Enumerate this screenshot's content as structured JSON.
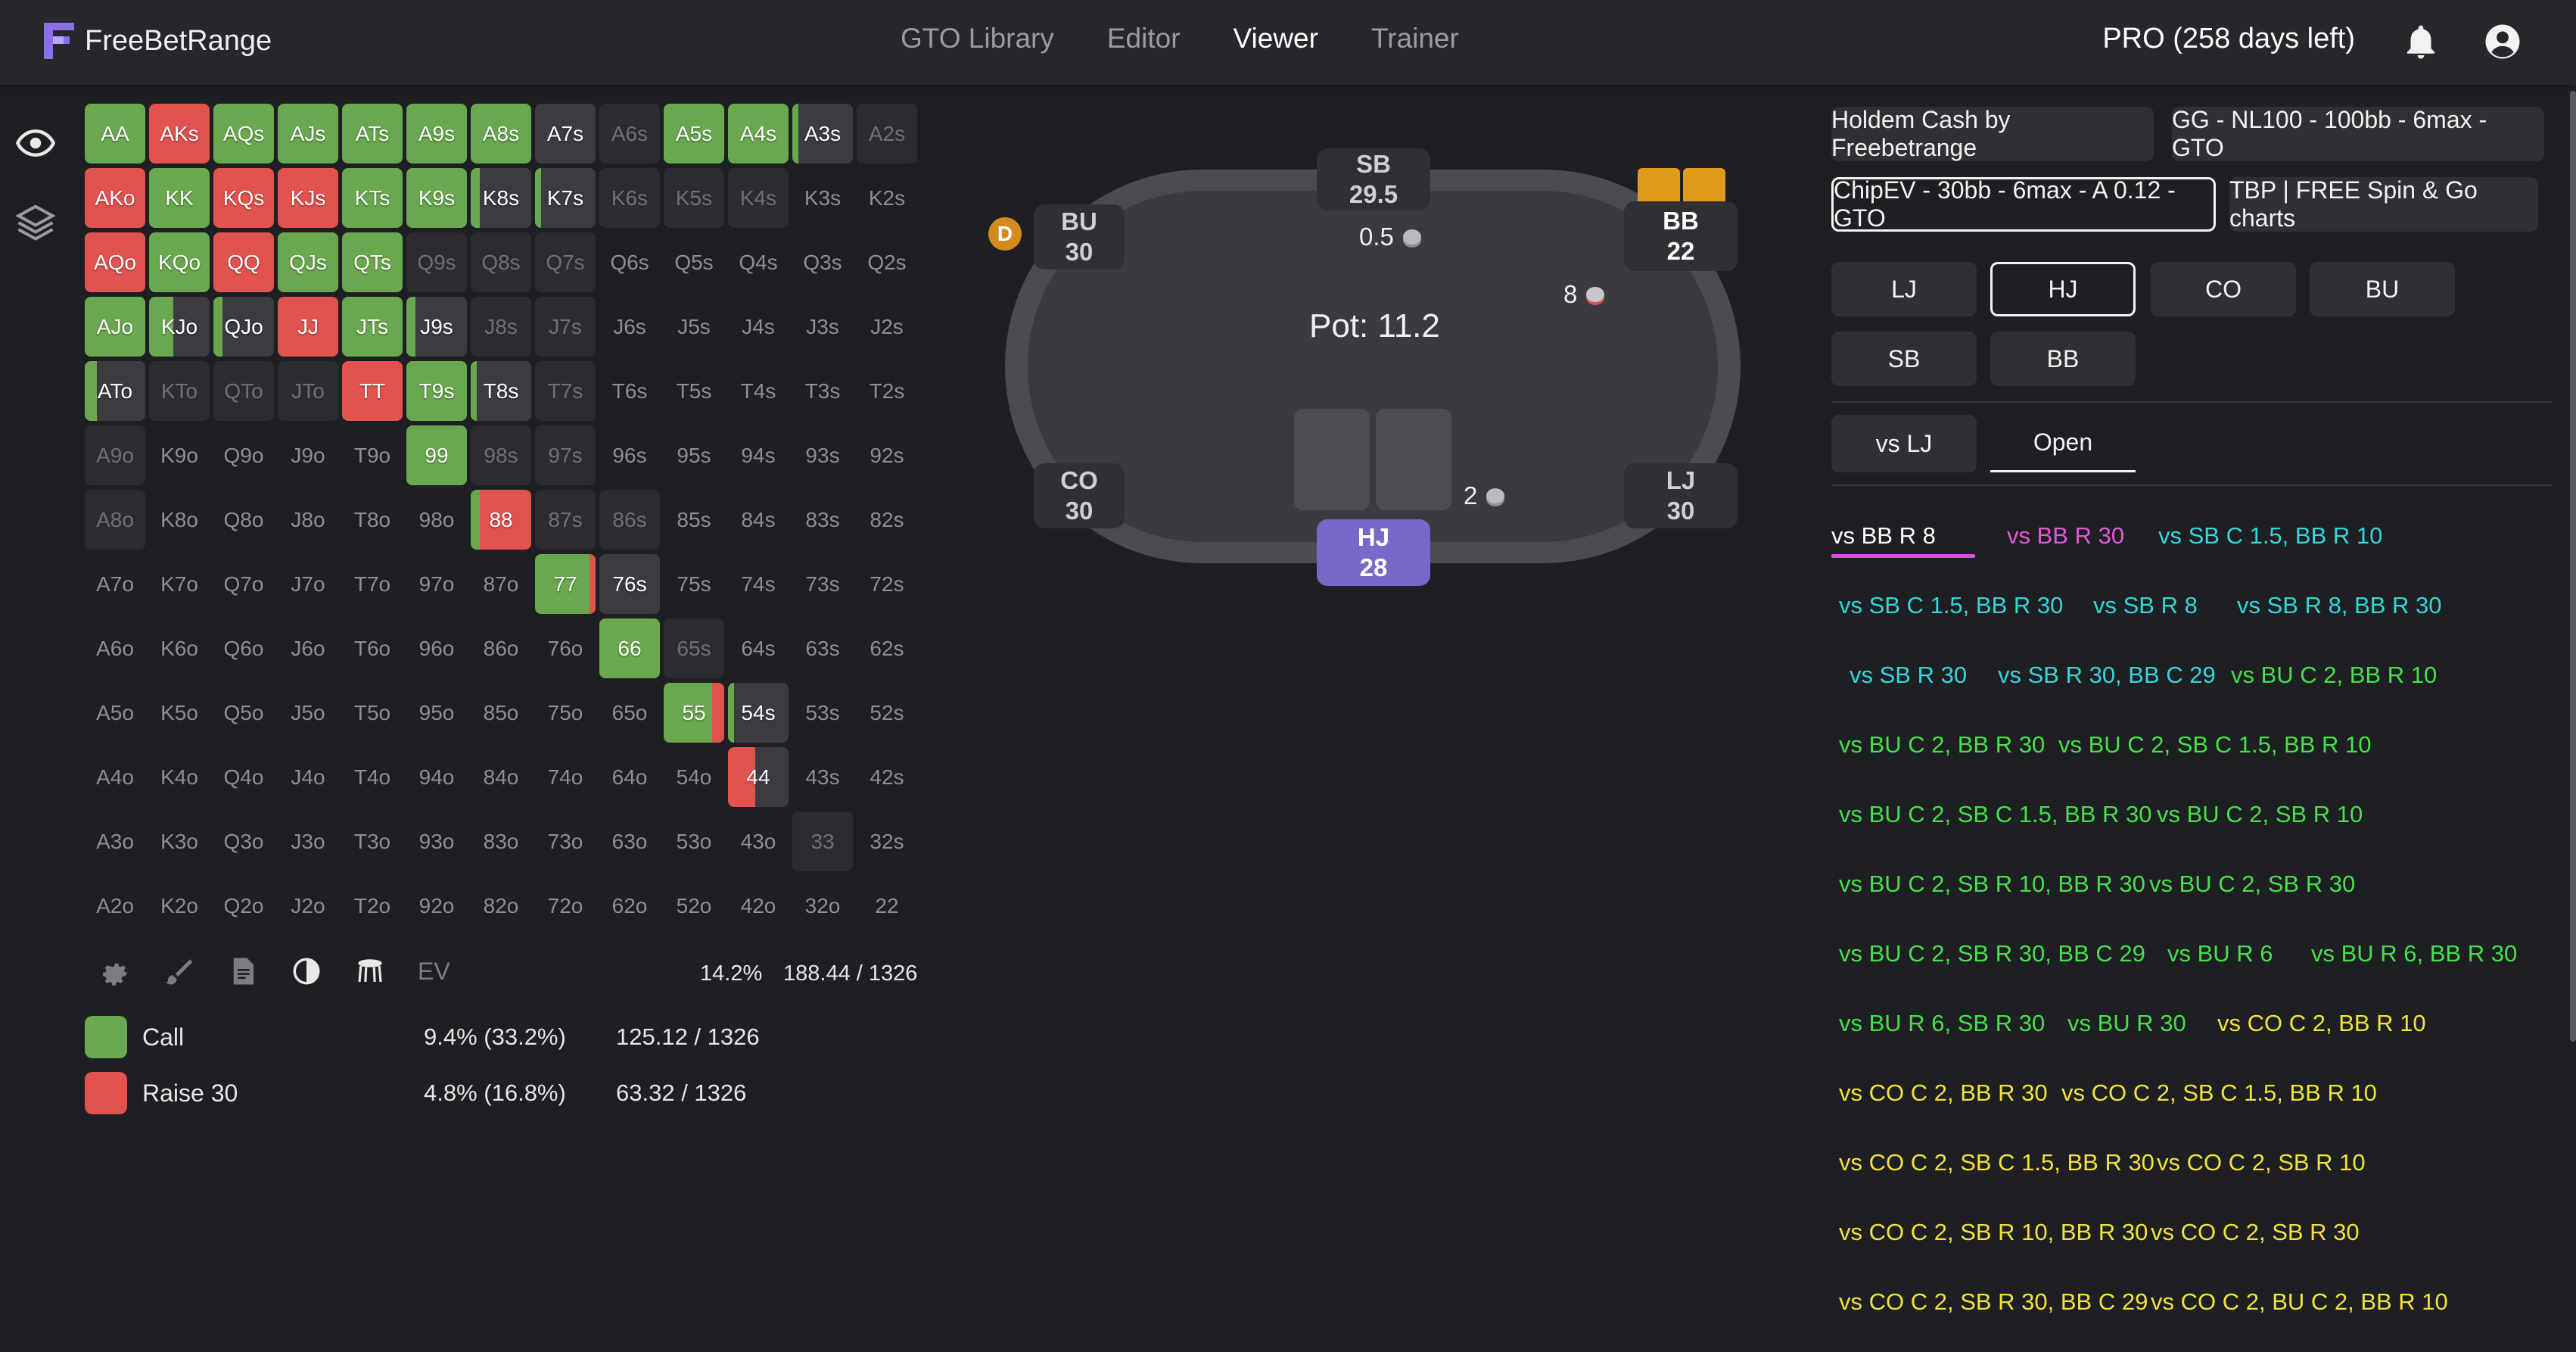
{
  "app": {
    "name": "FreeBetRange"
  },
  "nav": [
    {
      "label": "GTO Library",
      "active": false
    },
    {
      "label": "Editor",
      "active": false
    },
    {
      "label": "Viewer",
      "active": true
    },
    {
      "label": "Trainer",
      "active": false
    }
  ],
  "header": {
    "pro_status": "PRO (258 days left)"
  },
  "colors": {
    "call": "#6aa84f",
    "raise": "#e2524f",
    "accent": "#7a68c8",
    "fold": "#3a3c42"
  },
  "icons": {
    "logo": "freebetrange-logo-icon",
    "bell": "bell-icon",
    "account": "account-circle-icon",
    "eye": "eye-icon",
    "layers": "layers-icon",
    "gear": "gear-icon",
    "brush": "brush-icon",
    "doc": "document-icon",
    "contrast": "contrast-icon",
    "stool": "stool-icon"
  },
  "range_grid": {
    "rows": [
      [
        {
          "h": "AA",
          "t": "call"
        },
        {
          "h": "AKs",
          "t": "raise"
        },
        {
          "h": "AQs",
          "t": "call"
        },
        {
          "h": "AJs",
          "t": "call"
        },
        {
          "h": "ATs",
          "t": "call"
        },
        {
          "h": "A9s",
          "t": "call"
        },
        {
          "h": "A8s",
          "t": "call"
        },
        {
          "h": "A7s",
          "t": "fold"
        },
        {
          "h": "A6s",
          "t": "dim"
        },
        {
          "h": "A5s",
          "t": "call"
        },
        {
          "h": "A4s",
          "t": "call"
        },
        {
          "h": "A3s",
          "t": "fold",
          "call": 0.1
        },
        {
          "h": "A2s",
          "t": "dim"
        }
      ],
      [
        {
          "h": "AKo",
          "t": "raise"
        },
        {
          "h": "KK",
          "t": "call"
        },
        {
          "h": "KQs",
          "t": "raise"
        },
        {
          "h": "KJs",
          "t": "raise"
        },
        {
          "h": "KTs",
          "t": "call"
        },
        {
          "h": "K9s",
          "t": "call"
        },
        {
          "h": "K8s",
          "t": "fold",
          "call": 0.15
        },
        {
          "h": "K7s",
          "t": "fold",
          "call": 0.1
        },
        {
          "h": "K6s",
          "t": "dim"
        },
        {
          "h": "K5s",
          "t": "dim"
        },
        {
          "h": "K4s",
          "t": "dim"
        },
        {
          "h": "K3s",
          "t": "empty"
        },
        {
          "h": "K2s",
          "t": "empty"
        }
      ],
      [
        {
          "h": "AQo",
          "t": "raise"
        },
        {
          "h": "KQo",
          "t": "call"
        },
        {
          "h": "QQ",
          "t": "raise"
        },
        {
          "h": "QJs",
          "t": "call"
        },
        {
          "h": "QTs",
          "t": "call"
        },
        {
          "h": "Q9s",
          "t": "dim"
        },
        {
          "h": "Q8s",
          "t": "dim"
        },
        {
          "h": "Q7s",
          "t": "dim"
        },
        {
          "h": "Q6s",
          "t": "empty"
        },
        {
          "h": "Q5s",
          "t": "empty"
        },
        {
          "h": "Q4s",
          "t": "empty"
        },
        {
          "h": "Q3s",
          "t": "empty"
        },
        {
          "h": "Q2s",
          "t": "empty"
        }
      ],
      [
        {
          "h": "AJo",
          "t": "call"
        },
        {
          "h": "KJo",
          "t": "fold",
          "call": 0.4
        },
        {
          "h": "QJo",
          "t": "fold",
          "call": 0.15
        },
        {
          "h": "JJ",
          "t": "raise"
        },
        {
          "h": "JTs",
          "t": "call"
        },
        {
          "h": "J9s",
          "t": "fold",
          "call": 0.15
        },
        {
          "h": "J8s",
          "t": "dim"
        },
        {
          "h": "J7s",
          "t": "dim"
        },
        {
          "h": "J6s",
          "t": "empty"
        },
        {
          "h": "J5s",
          "t": "empty"
        },
        {
          "h": "J4s",
          "t": "empty"
        },
        {
          "h": "J3s",
          "t": "empty"
        },
        {
          "h": "J2s",
          "t": "empty"
        }
      ],
      [
        {
          "h": "ATo",
          "t": "fold",
          "call": 0.2
        },
        {
          "h": "KTo",
          "t": "dim"
        },
        {
          "h": "QTo",
          "t": "dim"
        },
        {
          "h": "JTo",
          "t": "dim"
        },
        {
          "h": "TT",
          "t": "raise"
        },
        {
          "h": "T9s",
          "t": "call"
        },
        {
          "h": "T8s",
          "t": "fold",
          "call": 0.1
        },
        {
          "h": "T7s",
          "t": "dim"
        },
        {
          "h": "T6s",
          "t": "empty"
        },
        {
          "h": "T5s",
          "t": "empty"
        },
        {
          "h": "T4s",
          "t": "empty"
        },
        {
          "h": "T3s",
          "t": "empty"
        },
        {
          "h": "T2s",
          "t": "empty"
        }
      ],
      [
        {
          "h": "A9o",
          "t": "dim"
        },
        {
          "h": "K9o",
          "t": "empty"
        },
        {
          "h": "Q9o",
          "t": "empty"
        },
        {
          "h": "J9o",
          "t": "empty"
        },
        {
          "h": "T9o",
          "t": "empty"
        },
        {
          "h": "99",
          "t": "call"
        },
        {
          "h": "98s",
          "t": "dim"
        },
        {
          "h": "97s",
          "t": "dim"
        },
        {
          "h": "96s",
          "t": "empty"
        },
        {
          "h": "95s",
          "t": "empty"
        },
        {
          "h": "94s",
          "t": "empty"
        },
        {
          "h": "93s",
          "t": "empty"
        },
        {
          "h": "92s",
          "t": "empty"
        }
      ],
      [
        {
          "h": "A8o",
          "t": "dim"
        },
        {
          "h": "K8o",
          "t": "empty"
        },
        {
          "h": "Q8o",
          "t": "empty"
        },
        {
          "h": "J8o",
          "t": "empty"
        },
        {
          "h": "T8o",
          "t": "empty"
        },
        {
          "h": "98o",
          "t": "empty"
        },
        {
          "h": "88",
          "t": "raise",
          "call": 0.15
        },
        {
          "h": "87s",
          "t": "dim"
        },
        {
          "h": "86s",
          "t": "dim"
        },
        {
          "h": "85s",
          "t": "empty"
        },
        {
          "h": "84s",
          "t": "empty"
        },
        {
          "h": "83s",
          "t": "empty"
        },
        {
          "h": "82s",
          "t": "empty"
        }
      ],
      [
        {
          "h": "A7o",
          "t": "empty"
        },
        {
          "h": "K7o",
          "t": "empty"
        },
        {
          "h": "Q7o",
          "t": "empty"
        },
        {
          "h": "J7o",
          "t": "empty"
        },
        {
          "h": "T7o",
          "t": "empty"
        },
        {
          "h": "97o",
          "t": "empty"
        },
        {
          "h": "87o",
          "t": "empty"
        },
        {
          "h": "77",
          "t": "call",
          "raise": 0.1
        },
        {
          "h": "76s",
          "t": "fold"
        },
        {
          "h": "75s",
          "t": "empty"
        },
        {
          "h": "74s",
          "t": "empty"
        },
        {
          "h": "73s",
          "t": "empty"
        },
        {
          "h": "72s",
          "t": "empty"
        }
      ],
      [
        {
          "h": "A6o",
          "t": "empty"
        },
        {
          "h": "K6o",
          "t": "empty"
        },
        {
          "h": "Q6o",
          "t": "empty"
        },
        {
          "h": "J6o",
          "t": "empty"
        },
        {
          "h": "T6o",
          "t": "empty"
        },
        {
          "h": "96o",
          "t": "empty"
        },
        {
          "h": "86o",
          "t": "empty"
        },
        {
          "h": "76o",
          "t": "empty"
        },
        {
          "h": "66",
          "t": "call"
        },
        {
          "h": "65s",
          "t": "dim"
        },
        {
          "h": "64s",
          "t": "empty"
        },
        {
          "h": "63s",
          "t": "empty"
        },
        {
          "h": "62s",
          "t": "empty"
        }
      ],
      [
        {
          "h": "A5o",
          "t": "empty"
        },
        {
          "h": "K5o",
          "t": "empty"
        },
        {
          "h": "Q5o",
          "t": "empty"
        },
        {
          "h": "J5o",
          "t": "empty"
        },
        {
          "h": "T5o",
          "t": "empty"
        },
        {
          "h": "95o",
          "t": "empty"
        },
        {
          "h": "85o",
          "t": "empty"
        },
        {
          "h": "75o",
          "t": "empty"
        },
        {
          "h": "65o",
          "t": "empty"
        },
        {
          "h": "55",
          "t": "call",
          "raise": 0.2
        },
        {
          "h": "54s",
          "t": "fold",
          "call": 0.1
        },
        {
          "h": "53s",
          "t": "empty"
        },
        {
          "h": "52s",
          "t": "empty"
        }
      ],
      [
        {
          "h": "A4o",
          "t": "empty"
        },
        {
          "h": "K4o",
          "t": "empty"
        },
        {
          "h": "Q4o",
          "t": "empty"
        },
        {
          "h": "J4o",
          "t": "empty"
        },
        {
          "h": "T4o",
          "t": "empty"
        },
        {
          "h": "94o",
          "t": "empty"
        },
        {
          "h": "84o",
          "t": "empty"
        },
        {
          "h": "74o",
          "t": "empty"
        },
        {
          "h": "64o",
          "t": "empty"
        },
        {
          "h": "54o",
          "t": "empty"
        },
        {
          "h": "44",
          "t": "fold",
          "raise": 0.45
        },
        {
          "h": "43s",
          "t": "empty"
        },
        {
          "h": "42s",
          "t": "empty"
        }
      ],
      [
        {
          "h": "A3o",
          "t": "empty"
        },
        {
          "h": "K3o",
          "t": "empty"
        },
        {
          "h": "Q3o",
          "t": "empty"
        },
        {
          "h": "J3o",
          "t": "empty"
        },
        {
          "h": "T3o",
          "t": "empty"
        },
        {
          "h": "93o",
          "t": "empty"
        },
        {
          "h": "83o",
          "t": "empty"
        },
        {
          "h": "73o",
          "t": "empty"
        },
        {
          "h": "63o",
          "t": "empty"
        },
        {
          "h": "53o",
          "t": "empty"
        },
        {
          "h": "43o",
          "t": "empty"
        },
        {
          "h": "33",
          "t": "dim"
        },
        {
          "h": "32s",
          "t": "empty"
        }
      ],
      [
        {
          "h": "A2o",
          "t": "empty"
        },
        {
          "h": "K2o",
          "t": "empty"
        },
        {
          "h": "Q2o",
          "t": "empty"
        },
        {
          "h": "J2o",
          "t": "empty"
        },
        {
          "h": "T2o",
          "t": "empty"
        },
        {
          "h": "92o",
          "t": "empty"
        },
        {
          "h": "82o",
          "t": "empty"
        },
        {
          "h": "72o",
          "t": "empty"
        },
        {
          "h": "62o",
          "t": "empty"
        },
        {
          "h": "52o",
          "t": "empty"
        },
        {
          "h": "42o",
          "t": "empty"
        },
        {
          "h": "32o",
          "t": "empty"
        },
        {
          "h": "22",
          "t": "empty"
        }
      ]
    ]
  },
  "tools": {
    "ev_label": "EV",
    "total_pct": "14.2%",
    "total_combos": "188.44 / 1326"
  },
  "legend": [
    {
      "name": "Call",
      "pct": "9.4% (33.2%)",
      "combos": "125.12 / 1326"
    },
    {
      "name": "Raise 30",
      "pct": "4.8% (16.8%)",
      "combos": "63.32 / 1326"
    }
  ],
  "table": {
    "pot": "Pot: 11.2",
    "seats": {
      "sb": {
        "pos": "SB",
        "stack": "29.5"
      },
      "bu": {
        "pos": "BU",
        "stack": "30"
      },
      "bb": {
        "pos": "BB",
        "stack": "22"
      },
      "co": {
        "pos": "CO",
        "stack": "30"
      },
      "lj": {
        "pos": "LJ",
        "stack": "30"
      },
      "hj": {
        "pos": "HJ",
        "stack": "28"
      }
    },
    "bets": {
      "sb": "0.5",
      "bb": "8",
      "hj": "2"
    },
    "dealer": "D"
  },
  "right_panel": {
    "charts": [
      {
        "label": "Holdem Cash by Freebetrange",
        "selected": false
      },
      {
        "label": "GG - NL100 - 100bb - 6max - GTO",
        "selected": false
      },
      {
        "label": "ChipEV - 30bb - 6max - A 0.12 - GTO",
        "selected": true
      },
      {
        "label": "TBP | FREE Spin & Go charts",
        "selected": false
      }
    ],
    "positions": [
      {
        "label": "LJ",
        "selected": false
      },
      {
        "label": "HJ",
        "selected": true
      },
      {
        "label": "CO",
        "selected": false
      },
      {
        "label": "BU",
        "selected": false
      },
      {
        "label": "SB",
        "selected": false
      },
      {
        "label": "BB",
        "selected": false
      }
    ],
    "situations": [
      {
        "label": "vs LJ",
        "selected": false
      },
      {
        "label": "Open",
        "selected": true
      }
    ],
    "actions": [
      {
        "label": "vs BB R 8",
        "color": "#ffffff"
      },
      {
        "label": "vs BB R 30",
        "color": "#e05ad9"
      },
      {
        "label": "vs SB C 1.5, BB R 10",
        "color": "#33d6dc"
      },
      {
        "label": "vs SB C 1.5, BB R 30",
        "color": "#33d6dc"
      },
      {
        "label": "vs SB R 8",
        "color": "#33d6dc"
      },
      {
        "label": "vs SB R 8, BB R 30",
        "color": "#33d6dc"
      },
      {
        "label": "vs SB R 30",
        "color": "#33d6dc"
      },
      {
        "label": "vs SB R 30, BB C 29",
        "color": "#33d6dc"
      },
      {
        "label": "vs BU C 2, BB R 10",
        "color": "#46e04a"
      },
      {
        "label": "vs BU C 2, BB R 30",
        "color": "#46e04a"
      },
      {
        "label": "vs BU C 2, SB C 1.5, BB R 10",
        "color": "#46e04a"
      },
      {
        "label": "vs BU C 2, SB C 1.5, BB R 30",
        "color": "#46e04a"
      },
      {
        "label": "vs BU C 2, SB R 10",
        "color": "#46e04a"
      },
      {
        "label": "vs BU C 2, SB R 10, BB R 30",
        "color": "#46e04a"
      },
      {
        "label": "vs BU C 2, SB R 30",
        "color": "#46e04a"
      },
      {
        "label": "vs BU C 2, SB R 30, BB C 29",
        "color": "#46e04a"
      },
      {
        "label": "vs BU R 6",
        "color": "#46e04a"
      },
      {
        "label": "vs BU R 6, BB R 30",
        "color": "#46e04a"
      },
      {
        "label": "vs BU R 6, SB R 30",
        "color": "#46e04a"
      },
      {
        "label": "vs BU R 30",
        "color": "#46e04a"
      },
      {
        "label": "vs CO C 2, BB R 10",
        "color": "#f2e23a"
      },
      {
        "label": "vs CO C 2, BB R 30",
        "color": "#f2e23a"
      },
      {
        "label": "vs CO C 2, SB C 1.5, BB R 10",
        "color": "#f2e23a"
      },
      {
        "label": "vs CO C 2, SB C 1.5, BB R 30",
        "color": "#f2e23a"
      },
      {
        "label": "vs CO C 2, SB R 10",
        "color": "#f2e23a"
      },
      {
        "label": "vs CO C 2, SB R 10, BB R 30",
        "color": "#f2e23a"
      },
      {
        "label": "vs CO C 2, SB R 30",
        "color": "#f2e23a"
      },
      {
        "label": "vs CO C 2, SB R 30, BB C 29",
        "color": "#f2e23a"
      },
      {
        "label": "vs CO C 2, BU C 2, BB R 10",
        "color": "#f2e23a"
      }
    ]
  }
}
